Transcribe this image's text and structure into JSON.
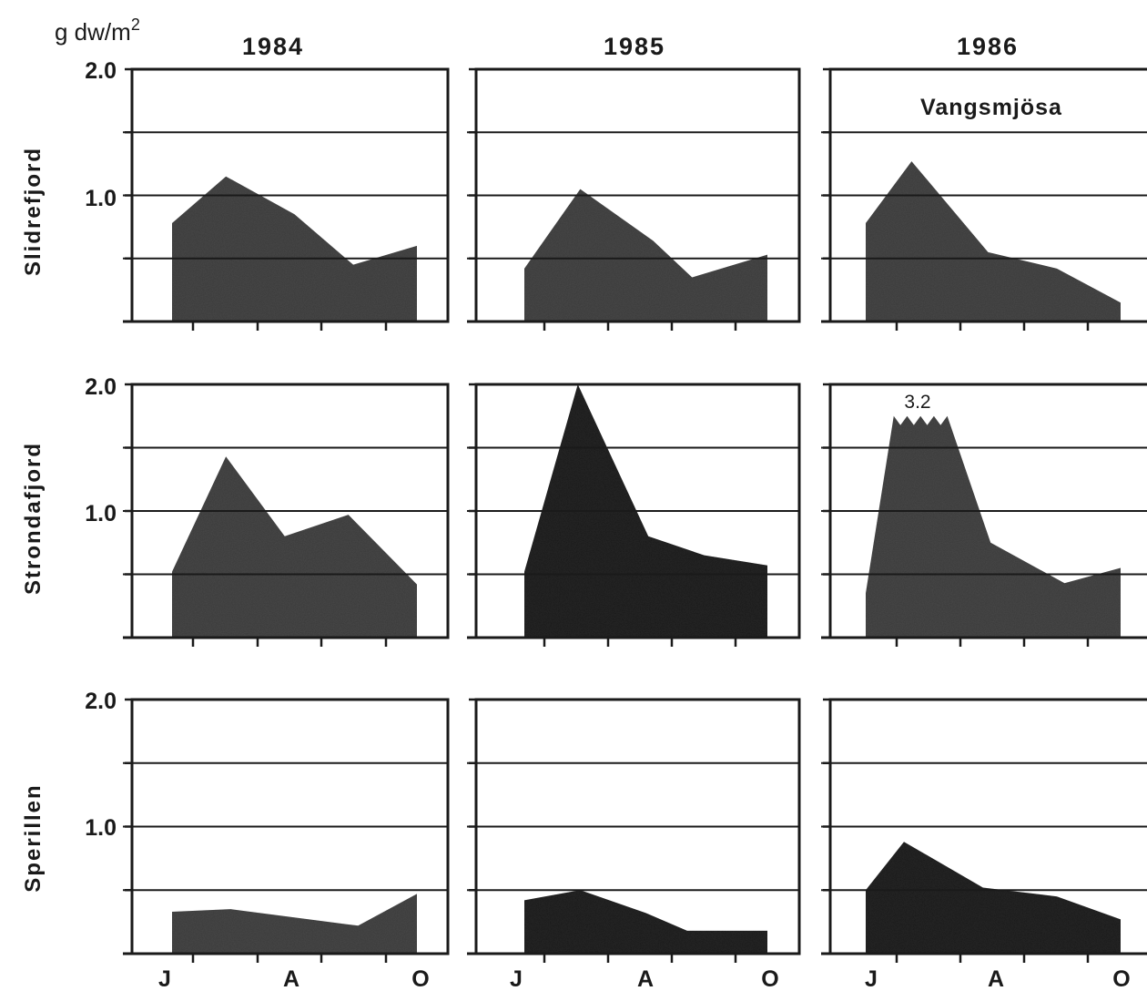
{
  "chart_data": {
    "type": "area",
    "y_unit_label": "g dw/m",
    "y_unit_superscript": "2",
    "yticks": [
      "2.0",
      "1.0"
    ],
    "ylim": [
      0,
      2.0
    ],
    "grid": true,
    "x_month_labels": [
      "J",
      "A",
      "O"
    ],
    "columns": [
      "1984",
      "1985",
      "1986"
    ],
    "rows": [
      "Slidrefjord",
      "Strondafjord",
      "Sperillen"
    ],
    "colors": {
      "fill_a": "#4a4a4a",
      "fill_b": "#262626",
      "ink": "#1a1a1a"
    },
    "panels": [
      {
        "row": 0,
        "col": 0,
        "fill": "fill_a",
        "x": [
          0.0,
          0.22,
          0.5,
          0.74,
          1.0
        ],
        "values": [
          0.78,
          1.15,
          0.85,
          0.45,
          0.6
        ]
      },
      {
        "row": 0,
        "col": 1,
        "fill": "fill_a",
        "x": [
          0.0,
          0.23,
          0.53,
          0.69,
          1.0
        ],
        "values": [
          0.42,
          1.05,
          0.64,
          0.35,
          0.53
        ]
      },
      {
        "row": 0,
        "col": 2,
        "fill": "fill_a",
        "x": [
          0.0,
          0.18,
          0.48,
          0.75,
          1.0
        ],
        "values": [
          0.78,
          1.27,
          0.55,
          0.42,
          0.15
        ]
      },
      {
        "row": 1,
        "col": 0,
        "fill": "fill_a",
        "x": [
          0.0,
          0.22,
          0.46,
          0.72,
          1.0
        ],
        "values": [
          0.52,
          1.43,
          0.8,
          0.97,
          0.42
        ]
      },
      {
        "row": 1,
        "col": 1,
        "fill": "fill_b",
        "x": [
          0.0,
          0.22,
          0.51,
          0.74,
          1.0
        ],
        "values": [
          0.52,
          2.0,
          0.8,
          0.65,
          0.57
        ]
      },
      {
        "row": 1,
        "col": 2,
        "fill": "fill_a",
        "x": [
          0.0,
          0.11,
          0.32,
          0.49,
          0.78,
          1.0
        ],
        "values": [
          0.35,
          1.75,
          1.75,
          0.75,
          0.43,
          0.55
        ]
      },
      {
        "row": 2,
        "col": 0,
        "fill": "fill_a",
        "x": [
          0.0,
          0.24,
          0.76,
          1.0
        ],
        "values": [
          0.33,
          0.35,
          0.22,
          0.47
        ]
      },
      {
        "row": 2,
        "col": 1,
        "fill": "fill_b",
        "x": [
          0.0,
          0.23,
          0.5,
          0.67,
          1.0
        ],
        "values": [
          0.42,
          0.5,
          0.32,
          0.18,
          0.18
        ]
      },
      {
        "row": 2,
        "col": 2,
        "fill": "fill_b",
        "x": [
          0.0,
          0.15,
          0.46,
          0.75,
          1.0
        ],
        "values": [
          0.5,
          0.88,
          0.52,
          0.45,
          0.27
        ]
      }
    ],
    "annotations": [
      {
        "row": 0,
        "col": 2,
        "text": "Vangsmjösa"
      },
      {
        "row": 1,
        "col": 2,
        "text": "3.2"
      }
    ]
  }
}
